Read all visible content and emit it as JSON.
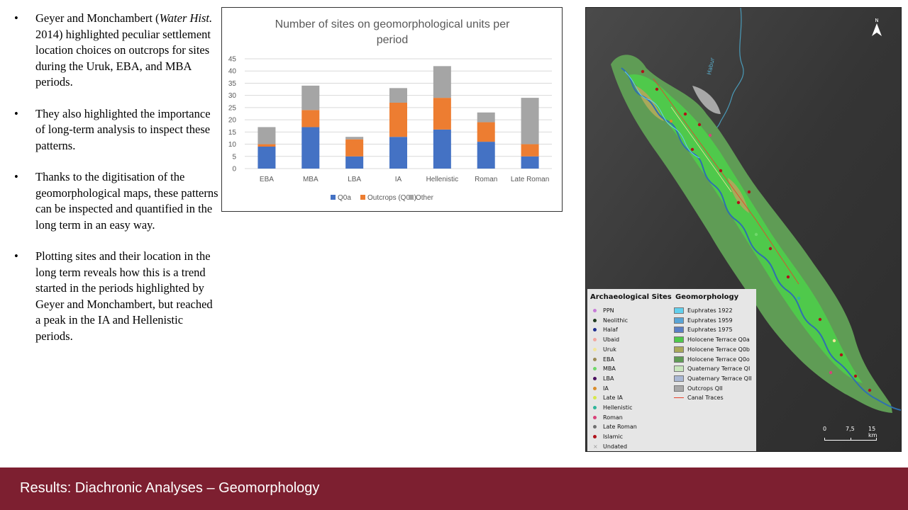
{
  "bullets": [
    {
      "pre": "Geyer and Monchambert (",
      "em": "Water Hist.",
      "post": " 2014) highlighted  peculiar settlement location choices on outcrops for sites during  the Uruk, EBA, and MBA periods."
    },
    {
      "pre": "They also highlighted  the importance of long-term analysis to inspect these patterns.",
      "em": "",
      "post": ""
    },
    {
      "pre": "Thanks to the digitisation  of the geomorphological maps, these patterns can be inspected and quantified in the long term in an easy way.",
      "em": "",
      "post": ""
    },
    {
      "pre": "Plotting sites and their location in the long term reveals  how this is a trend started in the periods highlighted  by Geyer and Monchambert, but reached a peak in the IA and Hellenistic periods.",
      "em": "",
      "post": ""
    }
  ],
  "bullet_symbol": "•",
  "chart_data": {
    "type": "bar",
    "stacked": true,
    "title": "Number of sites on geomorphological units per period",
    "categories": [
      "EBA",
      "MBA",
      "LBA",
      "IA",
      "Hellenistic",
      "Roman",
      "Late Roman"
    ],
    "series": [
      {
        "name": "Q0a",
        "color": "#4472c4",
        "values": [
          9,
          17,
          5,
          13,
          16,
          11,
          5
        ]
      },
      {
        "name": "Outcrops (Q0a)",
        "color": "#ed7d31",
        "values": [
          1,
          7,
          7,
          14,
          13,
          8,
          5
        ]
      },
      {
        "name": "Other",
        "color": "#a5a5a5",
        "values": [
          7,
          10,
          1,
          6,
          13,
          4,
          19
        ]
      }
    ],
    "yticks": [
      "0",
      "5",
      "10",
      "15",
      "20",
      "25",
      "30",
      "35",
      "40",
      "45"
    ],
    "ylim": [
      0,
      45
    ],
    "grid": true,
    "legend": "bottom"
  },
  "map": {
    "river_label": "Habur",
    "north_label": "N",
    "scale_labels": [
      "0",
      "7,5",
      "15 km"
    ],
    "legend": {
      "sites_title": "Archaeological Sites",
      "geo_title": "Geomorphology",
      "sites": [
        {
          "label": "PPN",
          "color": "#c77cd8"
        },
        {
          "label": "Neolithic",
          "color": "#1f3b1f"
        },
        {
          "label": "Halaf",
          "color": "#1f2f8f"
        },
        {
          "label": "Ubaid",
          "color": "#f2a7a0"
        },
        {
          "label": "Uruk",
          "color": "#f1e59a"
        },
        {
          "label": "EBA",
          "color": "#9a8a55"
        },
        {
          "label": "MBA",
          "color": "#6fd86a"
        },
        {
          "label": "LBA",
          "color": "#4a1060"
        },
        {
          "label": "IA",
          "color": "#d98c2b"
        },
        {
          "label": "Late IA",
          "color": "#d6e84a"
        },
        {
          "label": "Hellenistic",
          "color": "#2fb59a"
        },
        {
          "label": "Roman",
          "color": "#d9417a"
        },
        {
          "label": "Late Roman",
          "color": "#707070"
        },
        {
          "label": "Islamic",
          "color": "#b0121a"
        },
        {
          "label": "Undated",
          "color": "#999999",
          "symbol": "×"
        }
      ],
      "geomorphology": [
        {
          "label": "Euphrates 1922",
          "color": "#62d0ee",
          "kind": "fill"
        },
        {
          "label": "Euphrates 1959",
          "color": "#5aa5d6",
          "kind": "fill"
        },
        {
          "label": "Euphrates 1975",
          "color": "#5b7fc4",
          "kind": "fill"
        },
        {
          "label": "Holocene Terrace Q0a",
          "color": "#4fc94b",
          "kind": "fill"
        },
        {
          "label": "Holocene Terrace Q0b",
          "color": "#a9a95a",
          "kind": "fill"
        },
        {
          "label": "Holocene Terrace Q0o",
          "color": "#5f9c55",
          "kind": "fill"
        },
        {
          "label": "Quaternary Terrace QI",
          "color": "#c8e6bc",
          "kind": "fill"
        },
        {
          "label": "Quaternary Terrace QII",
          "color": "#aab8d4",
          "kind": "fill"
        },
        {
          "label": "Outcrops QII",
          "color": "#a8a8a8",
          "kind": "fill"
        },
        {
          "label": "Canal Traces",
          "color": "#e8402b",
          "kind": "line"
        }
      ]
    }
  },
  "footer": {
    "title": "Results: Diachronic Analyses – Geomorphology",
    "bg_color": "#7d1f30"
  }
}
